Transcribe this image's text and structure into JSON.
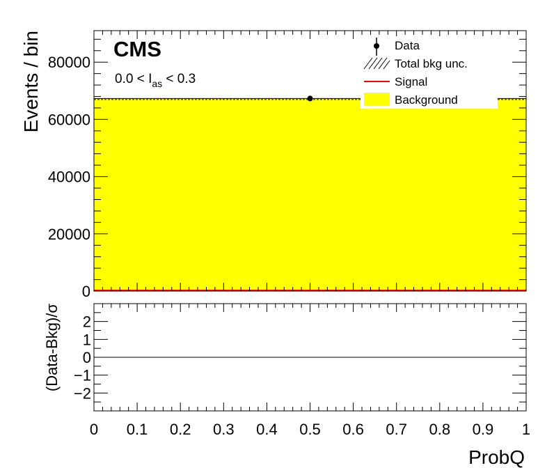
{
  "chart_data": [
    {
      "type": "bar",
      "panel": "main",
      "experiment_label": "CMS",
      "selection_label": {
        "prefix": "0.0 < I",
        "subscript": "as",
        "suffix": " < 0.3"
      },
      "xlabel": "ProbQ",
      "ylabel": "Events / bin",
      "xlim": [
        0,
        1
      ],
      "ylim": [
        0,
        91000
      ],
      "y_ticks": [
        0,
        20000,
        40000,
        60000,
        80000
      ],
      "y_tick_labels": [
        "0",
        "20000",
        "40000",
        "60000",
        "80000"
      ],
      "series": [
        {
          "name": "Background",
          "kind": "filled-histogram",
          "color": "#ffff00",
          "bins": [
            [
              0,
              1
            ]
          ],
          "values": [
            67300
          ]
        },
        {
          "name": "Signal",
          "kind": "line",
          "color": "#ff0000",
          "bins": [
            [
              0,
              1
            ]
          ],
          "values": [
            0
          ]
        },
        {
          "name": "Total bkg unc.",
          "kind": "hatched-band",
          "color": "#000000"
        },
        {
          "name": "Data",
          "kind": "points",
          "color": "#000000",
          "x": [
            0.5
          ],
          "y": [
            67300
          ]
        }
      ],
      "legend": {
        "placement": "top-right",
        "entries": [
          {
            "label": "Data",
            "symbol": "marker"
          },
          {
            "label": "Total bkg unc.",
            "symbol": "hatch"
          },
          {
            "label": "Signal",
            "symbol": "line"
          },
          {
            "label": "Background",
            "symbol": "fill"
          }
        ]
      }
    },
    {
      "type": "line",
      "panel": "ratio",
      "ylabel": "(Data-Bkg)/σ",
      "xlabel": "ProbQ",
      "xlim": [
        0,
        1
      ],
      "ylim": [
        -3,
        3
      ],
      "y_ticks": [
        -2,
        -1,
        0,
        1,
        2
      ],
      "y_tick_labels": [
        "−2",
        "−1",
        "0",
        "1",
        "2"
      ],
      "x_ticks": [
        0,
        0.1,
        0.2,
        0.3,
        0.4,
        0.5,
        0.6,
        0.7,
        0.8,
        0.9,
        1
      ],
      "x_tick_labels": [
        "0",
        "0.1",
        "0.2",
        "0.3",
        "0.4",
        "0.5",
        "0.6",
        "0.7",
        "0.8",
        "0.9",
        "1"
      ],
      "reference_line": 0
    }
  ]
}
